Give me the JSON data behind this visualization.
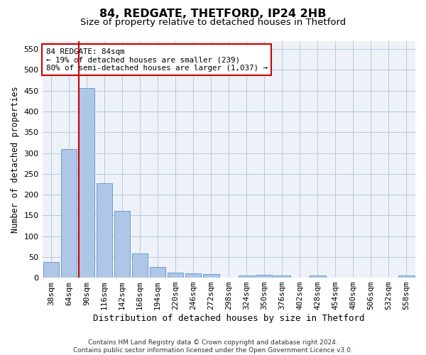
{
  "title1": "84, REDGATE, THETFORD, IP24 2HB",
  "title2": "Size of property relative to detached houses in Thetford",
  "xlabel": "Distribution of detached houses by size in Thetford",
  "ylabel": "Number of detached properties",
  "categories": [
    "38sqm",
    "64sqm",
    "90sqm",
    "116sqm",
    "142sqm",
    "168sqm",
    "194sqm",
    "220sqm",
    "246sqm",
    "272sqm",
    "298sqm",
    "324sqm",
    "350sqm",
    "376sqm",
    "402sqm",
    "428sqm",
    "454sqm",
    "480sqm",
    "506sqm",
    "532sqm",
    "558sqm"
  ],
  "values": [
    38,
    310,
    457,
    228,
    160,
    58,
    25,
    12,
    10,
    8,
    0,
    5,
    7,
    6,
    0,
    5,
    0,
    0,
    0,
    0,
    5
  ],
  "bar_color": "#aec6e8",
  "bar_edge_color": "#5a96c8",
  "highlight_x": "90sqm",
  "highlight_color": "#cc0000",
  "annotation_text": "84 REDGATE: 84sqm\n← 19% of detached houses are smaller (239)\n80% of semi-detached houses are larger (1,037) →",
  "annotation_box_color": "#ffffff",
  "annotation_box_edge": "#cc0000",
  "ylim": [
    0,
    570
  ],
  "yticks": [
    0,
    50,
    100,
    150,
    200,
    250,
    300,
    350,
    400,
    450,
    500,
    550
  ],
  "background_color": "#eef2f8",
  "footer": "Contains HM Land Registry data © Crown copyright and database right 2024.\nContains public sector information licensed under the Open Government Licence v3.0.",
  "title1_fontsize": 11.5,
  "title2_fontsize": 9.5,
  "xlabel_fontsize": 9,
  "ylabel_fontsize": 8.5,
  "tick_fontsize": 8,
  "footer_fontsize": 6.5
}
